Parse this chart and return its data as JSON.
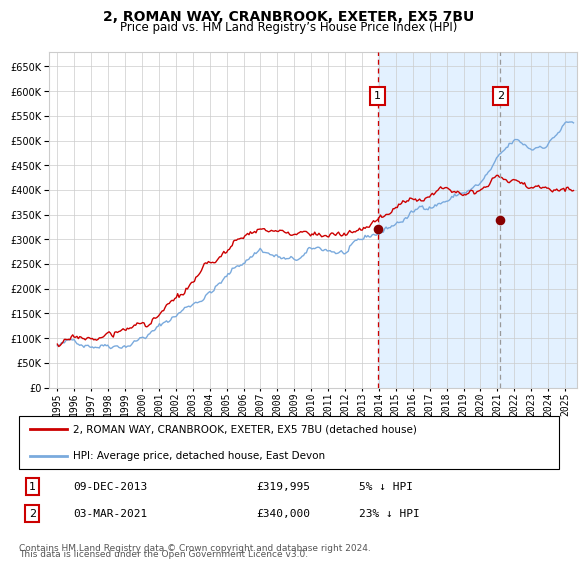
{
  "title": "2, ROMAN WAY, CRANBROOK, EXETER, EX5 7BU",
  "subtitle": "Price paid vs. HM Land Registry’s House Price Index (HPI)",
  "hpi_label": "HPI: Average price, detached house, East Devon",
  "house_label": "2, ROMAN WAY, CRANBROOK, EXETER, EX5 7BU (detached house)",
  "footer1": "Contains HM Land Registry data © Crown copyright and database right 2024.",
  "footer2": "This data is licensed under the Open Government Licence v3.0.",
  "transaction1": {
    "date": "09-DEC-2013",
    "price": "319,995",
    "pct": "5%"
  },
  "transaction2": {
    "date": "03-MAR-2021",
    "price": "340,000",
    "pct": "23%"
  },
  "vline1_x": 2013.92,
  "vline2_x": 2021.17,
  "shade_start": 2013.92,
  "shade_end": 2025.7,
  "ylim": [
    0,
    680000
  ],
  "xlim": [
    1994.5,
    2025.7
  ],
  "hpi_color": "#7aaadd",
  "house_color": "#cc0000",
  "point_color": "#880000",
  "vline1_color": "#cc0000",
  "vline2_color": "#999999",
  "shade_color": "#ddeeff",
  "bg_color": "#ffffff",
  "grid_color": "#cccccc",
  "title_fontsize": 10,
  "subtitle_fontsize": 8.5,
  "tick_fontsize": 7
}
